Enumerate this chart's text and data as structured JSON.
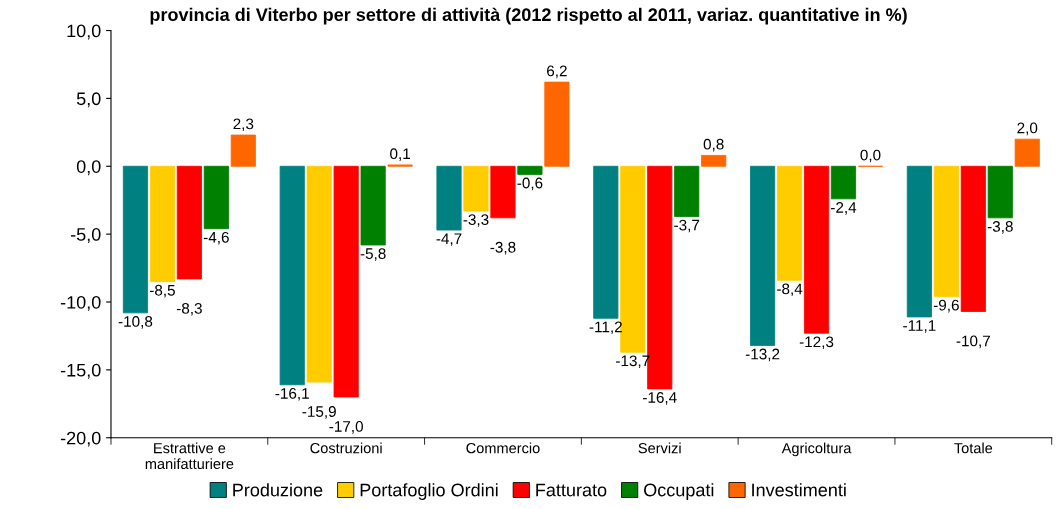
{
  "chart_data": {
    "type": "bar",
    "title": "provincia di Viterbo per settore di attività (2012 rispetto al 2011, variaz. quantitative in %)",
    "categories": [
      "Estrattive e\nmanifatturiere",
      "Costruzioni",
      "Commercio",
      "Servizi",
      "Agricoltura",
      "Totale"
    ],
    "series": [
      {
        "name": "Produzione",
        "color": "#008080",
        "values": [
          -10.8,
          -16.1,
          -4.7,
          -11.2,
          -13.2,
          -11.1
        ],
        "value_labels": [
          "-10,8",
          "-16,1",
          "-4,7",
          "-11,2",
          "-13,2",
          "-11,1"
        ]
      },
      {
        "name": "Portafoglio Ordini",
        "color": "#ffcc00",
        "values": [
          -8.5,
          -15.9,
          -3.3,
          -13.7,
          -8.4,
          -9.6
        ],
        "value_labels": [
          "-8,5",
          "-15,9",
          "-3,3",
          "-13,7",
          "-8,4",
          "-9,6"
        ]
      },
      {
        "name": "Fatturato",
        "color": "#ff0000",
        "values": [
          -8.3,
          -17.0,
          -3.8,
          -16.4,
          -12.3,
          -10.7
        ],
        "value_labels": [
          "-8,3",
          "-17,0",
          "-3,8",
          "-16,4",
          "-12,3",
          "-10,7"
        ]
      },
      {
        "name": "Occupati",
        "color": "#008000",
        "values": [
          -4.6,
          -5.8,
          -0.6,
          -3.7,
          -2.4,
          -3.8
        ],
        "value_labels": [
          "-4,6",
          "-5,8",
          "-0,6",
          "-3,7",
          "-2,4",
          "-3,8"
        ]
      },
      {
        "name": "Investimenti",
        "color": "#ff6600",
        "values": [
          2.3,
          0.1,
          6.2,
          0.8,
          0.0,
          2.0
        ],
        "value_labels": [
          "2,3",
          "0,1",
          "6,2",
          "0,8",
          "0,0",
          "2,0"
        ]
      }
    ],
    "ylim": [
      -20,
      10
    ],
    "yticks": [
      {
        "value": -20,
        "label": "-20,0"
      },
      {
        "value": -15,
        "label": "-15,0"
      },
      {
        "value": -10,
        "label": "-10,0"
      },
      {
        "value": -5,
        "label": "-5,0"
      },
      {
        "value": 0,
        "label": "0,0"
      },
      {
        "value": 5,
        "label": "5,0"
      },
      {
        "value": 10,
        "label": "10,0"
      }
    ],
    "grid": false,
    "legend": "bottom"
  }
}
